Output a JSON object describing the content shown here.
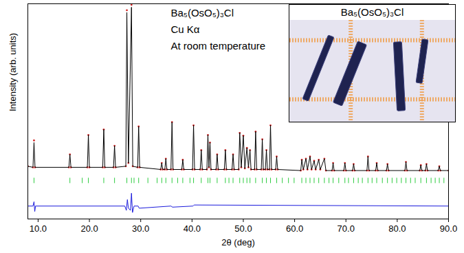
{
  "chart_data": {
    "type": "line",
    "xlabel": "2θ (deg)",
    "ylabel": "Intensity (arb. units)",
    "annotations": [
      "Ba₅(OsO₅)₃Cl",
      "Cu Kα",
      "At room temperature"
    ],
    "inset": {
      "title": "Ba₅(OsO₅)₃Cl"
    },
    "xlim": [
      8,
      90
    ],
    "xticks": [
      {
        "value": 10,
        "label": "10.0"
      },
      {
        "value": 20,
        "label": "20.0"
      },
      {
        "value": 30,
        "label": "30.0"
      },
      {
        "value": 40,
        "label": "40.0"
      },
      {
        "value": 50,
        "label": "50.0"
      },
      {
        "value": 60,
        "label": "60.0"
      },
      {
        "value": 70,
        "label": "70.0"
      },
      {
        "value": 80,
        "label": "80.0"
      },
      {
        "value": 90,
        "label": "90.0"
      }
    ],
    "ylim": [
      0,
      100
    ],
    "yticks": [],
    "tick_labels": "x",
    "grid": false,
    "series": [
      {
        "type": "scatter",
        "marker": "circle",
        "color": "#d42a2a",
        "x": [
          8,
          9.0,
          9.2,
          9.4,
          16.0,
          16.2,
          16.4,
          19.6,
          19.8,
          20.0,
          22.6,
          22.8,
          23.0,
          24.7,
          24.9,
          25.1,
          27.1,
          27.3,
          27.6,
          28.2,
          28.45,
          29.4,
          29.6,
          29.8,
          33.9,
          34.1,
          34.3,
          34.7,
          34.9,
          35.1,
          35.9,
          36.1,
          36.3,
          38.0,
          38.2,
          38.4,
          40.1,
          40.3,
          40.5,
          41.6,
          41.8,
          42.0,
          42.9,
          43.1,
          43.3,
          43.5,
          43.7,
          44.7,
          44.9,
          45.1,
          46.3,
          46.5,
          46.7,
          47.8,
          48.0,
          48.2,
          49.1,
          49.3,
          49.6,
          50.0,
          50.3,
          50.7,
          51.0,
          51.3,
          51.5,
          52.2,
          52.4,
          52.6,
          53.5,
          53.7,
          53.9,
          54.3,
          54.5,
          54.7,
          55.1,
          55.3,
          55.5,
          56.3,
          56.5,
          56.7,
          61.2,
          61.4,
          61.7,
          62.2,
          62.5,
          63.0,
          63.3,
          63.8,
          64.1,
          64.7,
          65.0,
          65.8,
          66.1,
          67.3,
          67.5,
          67.7,
          69.6,
          69.8,
          70.0,
          71.3,
          71.5,
          71.7,
          74.1,
          74.3,
          74.5,
          75.8,
          76.0,
          76.2,
          77.9,
          78.1,
          78.3,
          81.5,
          81.7,
          81.9,
          84.4,
          84.6,
          84.8,
          85.5,
          85.7,
          85.9,
          88.0,
          88.2,
          88.4,
          90
        ],
        "values": [
          24.5,
          24,
          36.5,
          24,
          24,
          30,
          24,
          24,
          39,
          24,
          24,
          41.6,
          24,
          24,
          34,
          24,
          24.5,
          97,
          26,
          99.5,
          24.5,
          24,
          43,
          24,
          23,
          26,
          23,
          23,
          28,
          23,
          23,
          45,
          23,
          23,
          27.5,
          23,
          23,
          43.5,
          23,
          23,
          32,
          23,
          23,
          39,
          24,
          35.5,
          23,
          23,
          30,
          23,
          23,
          32,
          23,
          23,
          30,
          23,
          23,
          40,
          24,
          38.7,
          23.5,
          33,
          24,
          32,
          23,
          23,
          40.6,
          23,
          23,
          37,
          23,
          23,
          32,
          23,
          23,
          43.5,
          23,
          23,
          29,
          23,
          22.5,
          27.5,
          23,
          28,
          23,
          29,
          23,
          27,
          23,
          27.5,
          23,
          28,
          22.5,
          22.5,
          26,
          22.5,
          22.5,
          26,
          22.5,
          22.5,
          25.5,
          22.5,
          22.5,
          29,
          22.5,
          22.5,
          26,
          22.5,
          22.5,
          25.5,
          22.5,
          22.5,
          26.5,
          22.5,
          22.5,
          25,
          22.5,
          22.5,
          25.5,
          22.5,
          22.5,
          24.5,
          22.5,
          22.5
        ]
      },
      {
        "type": "line",
        "line_style": "solid",
        "color": "#000000",
        "x": [
          8,
          9.0,
          9.2,
          9.4,
          16.0,
          16.2,
          16.4,
          19.6,
          19.8,
          20.0,
          22.6,
          22.8,
          23.0,
          24.7,
          24.9,
          25.1,
          27.1,
          27.3,
          27.6,
          28.2,
          28.45,
          29.4,
          29.6,
          29.8,
          33.9,
          34.1,
          34.3,
          34.7,
          34.9,
          35.1,
          35.9,
          36.1,
          36.3,
          38.0,
          38.2,
          38.4,
          40.1,
          40.3,
          40.5,
          41.6,
          41.8,
          42.0,
          42.9,
          43.1,
          43.3,
          43.5,
          43.7,
          44.7,
          44.9,
          45.1,
          46.3,
          46.5,
          46.7,
          47.8,
          48.0,
          48.2,
          49.1,
          49.3,
          49.6,
          50.0,
          50.3,
          50.7,
          51.0,
          51.3,
          51.5,
          52.2,
          52.4,
          52.6,
          53.5,
          53.7,
          53.9,
          54.3,
          54.5,
          54.7,
          55.1,
          55.3,
          55.5,
          56.3,
          56.5,
          56.7,
          61.2,
          61.4,
          61.7,
          62.2,
          62.5,
          63.0,
          63.3,
          63.8,
          64.1,
          64.7,
          65.0,
          65.8,
          66.1,
          67.3,
          67.5,
          67.7,
          69.6,
          69.8,
          70.0,
          71.3,
          71.5,
          71.7,
          74.1,
          74.3,
          74.5,
          75.8,
          76.0,
          76.2,
          77.9,
          78.1,
          78.3,
          81.5,
          81.7,
          81.9,
          84.4,
          84.6,
          84.8,
          85.5,
          85.7,
          85.9,
          88.0,
          88.2,
          88.4,
          90
        ],
        "values": [
          24.5,
          24,
          35.5,
          24,
          24,
          30,
          24,
          24,
          39,
          24,
          24,
          41.6,
          24,
          24,
          34,
          24,
          24.5,
          96,
          26,
          98.4,
          24.5,
          24,
          43,
          24,
          23,
          26,
          23,
          23,
          28,
          23,
          23,
          45,
          23,
          23,
          27.5,
          23,
          23,
          43.5,
          23,
          23,
          32,
          23,
          23,
          39,
          24,
          35.5,
          23,
          23,
          30,
          23,
          23,
          32,
          23,
          23,
          30,
          23,
          23,
          40,
          24,
          38.7,
          23.5,
          33,
          24,
          32,
          23,
          23,
          40.6,
          23,
          23,
          37,
          23,
          23,
          32,
          23,
          23,
          43.5,
          23,
          23,
          29,
          23,
          22.5,
          27.5,
          23,
          28,
          23,
          29,
          23,
          27,
          23,
          27.5,
          23,
          28,
          22.5,
          22.5,
          26,
          22.5,
          22.5,
          26,
          22.5,
          22.5,
          25.5,
          22.5,
          22.5,
          29,
          22.5,
          22.5,
          26,
          22.5,
          22.5,
          25.5,
          22.5,
          22.5,
          26.5,
          22.5,
          22.5,
          25,
          22.5,
          22.5,
          25.5,
          22.5,
          22.5,
          24.5,
          22.5,
          22.5
        ]
      },
      {
        "type": "rule",
        "color": "#2ecc40",
        "y_range": [
          16.5,
          19
        ],
        "x": [
          9.2,
          16.2,
          18.6,
          19.8,
          22.8,
          24.9,
          27.3,
          28.2,
          28.7,
          29.6,
          31.4,
          33.2,
          34.1,
          34.9,
          36.1,
          37.2,
          38.2,
          39.6,
          40.3,
          41.8,
          43.1,
          43.5,
          44.9,
          46.5,
          47.2,
          48.0,
          49.3,
          50.0,
          50.7,
          51.3,
          52.4,
          53.7,
          54.5,
          55.3,
          56.5,
          57.6,
          58.8,
          59.9,
          61.4,
          62.2,
          63.0,
          63.8,
          64.7,
          65.8,
          66.7,
          67.5,
          68.6,
          69.8,
          70.5,
          71.5,
          72.4,
          73.2,
          74.3,
          75.1,
          76.0,
          77.1,
          78.1,
          79.0,
          79.9,
          80.8,
          81.7,
          82.6,
          83.5,
          84.6,
          85.7,
          86.6,
          87.4,
          88.2,
          89.1
        ]
      },
      {
        "type": "line",
        "line_style": "solid",
        "color": "#1a1adc",
        "x": [
          8,
          9.0,
          9.2,
          9.35,
          9.5,
          26.9,
          27.2,
          27.4,
          27.6,
          28.0,
          28.2,
          28.4,
          28.7,
          29.5,
          29.7,
          35.9,
          36.2,
          40.2,
          40.4,
          90
        ],
        "values": [
          6,
          6,
          8,
          3.5,
          6,
          6,
          4,
          9,
          5,
          4,
          12,
          3,
          6,
          6,
          5,
          6,
          5.5,
          6,
          6.5,
          6
        ]
      }
    ]
  }
}
